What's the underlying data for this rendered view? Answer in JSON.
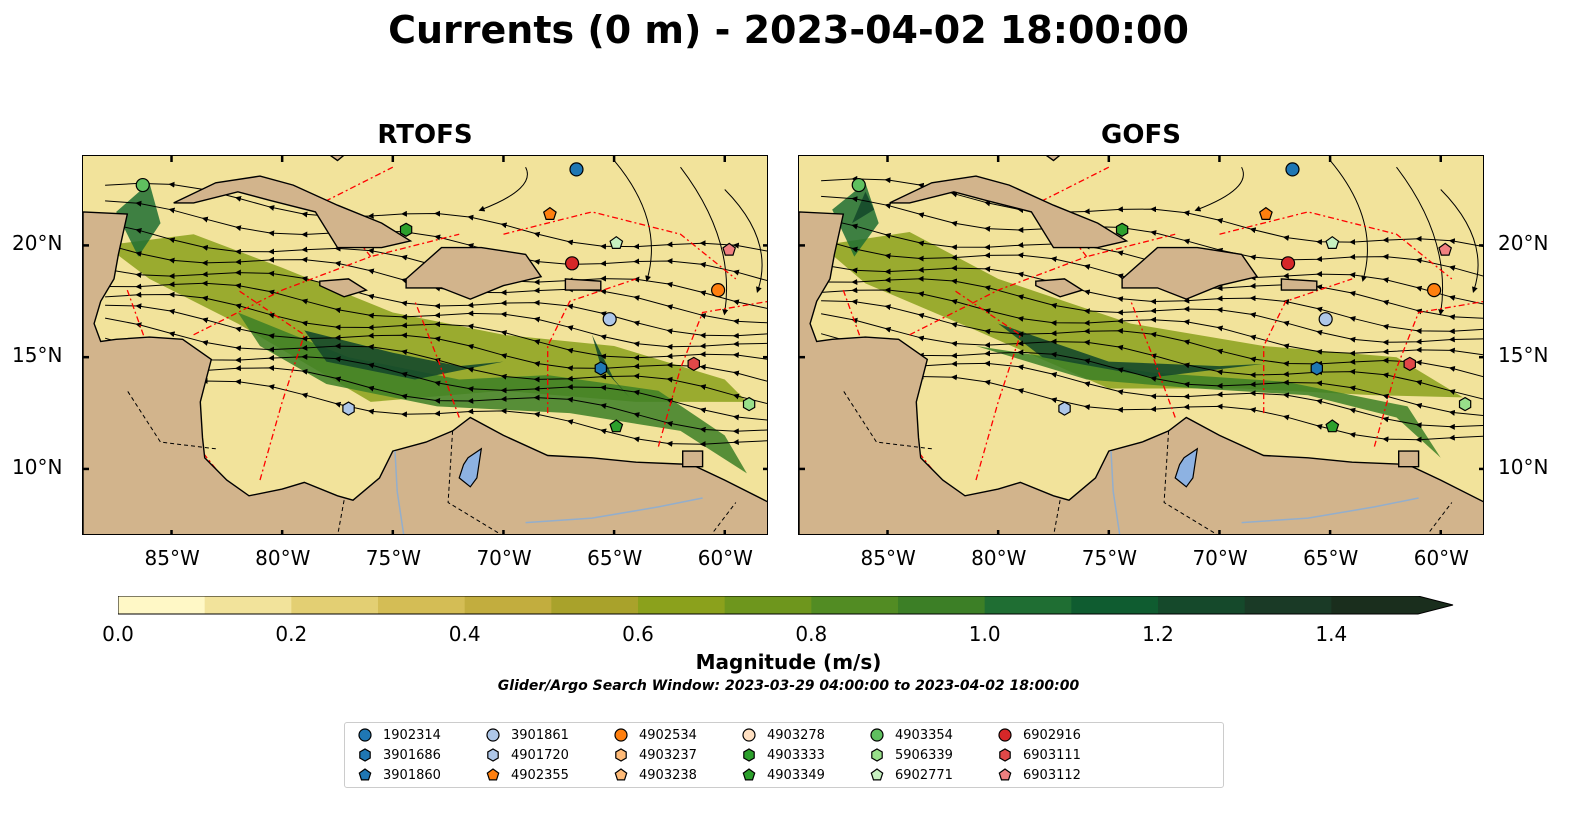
{
  "title": "Currents (0 m) - 2023-04-02 18:00:00",
  "panels": [
    {
      "title": "RTOFS"
    },
    {
      "title": "GOFS"
    }
  ],
  "map_extent": {
    "lon": [
      -89,
      -58
    ],
    "lat": [
      7,
      24
    ]
  },
  "lon_ticks": [
    "85°W",
    "80°W",
    "75°W",
    "70°W",
    "65°W",
    "60°W"
  ],
  "lon_tick_values": [
    -85,
    -80,
    -75,
    -70,
    -65,
    -60
  ],
  "lat_ticks": [
    "20°N",
    "15°N",
    "10°N"
  ],
  "lat_tick_values": [
    20,
    15,
    10
  ],
  "colors": {
    "land": "#d2b48c",
    "lake": "#8db2e2",
    "eez": "#ff0000",
    "coast": "#000000"
  },
  "colorbar": {
    "label": "Magnitude (m/s)",
    "min": 0.0,
    "max": 1.5,
    "step": 0.1,
    "extend": "max",
    "tick_labels": [
      "0.0",
      "0.2",
      "0.4",
      "0.6",
      "0.8",
      "1.0",
      "1.2",
      "1.4"
    ],
    "tick_values": [
      0.0,
      0.2,
      0.4,
      0.6,
      0.8,
      1.0,
      1.2,
      1.4
    ],
    "colors": [
      "#fff8c6",
      "#f2e39b",
      "#e3cf73",
      "#d4bd55",
      "#c2ad3e",
      "#a9a22b",
      "#8ba11c",
      "#6e961d",
      "#528c23",
      "#3c7f26",
      "#1f6e33",
      "#0f5c30",
      "#15492b",
      "#1a3a26",
      "#1a2e1d"
    ]
  },
  "search_window": "Glider/Argo Search Window: 2023-03-29 04:00:00 to 2023-04-02 18:00:00",
  "legend": [
    {
      "id": "1902314",
      "marker": "circle",
      "color": "#1f77b4"
    },
    {
      "id": "3901686",
      "marker": "hexagon",
      "color": "#1f77b4"
    },
    {
      "id": "3901860",
      "marker": "pentagon",
      "color": "#1f77b4"
    },
    {
      "id": "3901861",
      "marker": "circle",
      "color": "#aec7e8"
    },
    {
      "id": "4901720",
      "marker": "hexagon",
      "color": "#aec7e8"
    },
    {
      "id": "4902355",
      "marker": "pentagon",
      "color": "#ff7f0e"
    },
    {
      "id": "4902534",
      "marker": "circle",
      "color": "#ff7f0e"
    },
    {
      "id": "4903237",
      "marker": "hexagon",
      "color": "#ffbb78"
    },
    {
      "id": "4903238",
      "marker": "pentagon",
      "color": "#ffbb78"
    },
    {
      "id": "4903278",
      "marker": "circle",
      "color": "#ffe0c2"
    },
    {
      "id": "4903333",
      "marker": "hexagon",
      "color": "#2ca02c"
    },
    {
      "id": "4903349",
      "marker": "pentagon",
      "color": "#2ca02c"
    },
    {
      "id": "4903354",
      "marker": "circle",
      "color": "#5fbf5f"
    },
    {
      "id": "5906339",
      "marker": "hexagon",
      "color": "#98df8a"
    },
    {
      "id": "6902771",
      "marker": "pentagon",
      "color": "#c7f0c0"
    },
    {
      "id": "6902916",
      "marker": "circle",
      "color": "#d62728"
    },
    {
      "id": "6903111",
      "marker": "hexagon",
      "color": "#e04848"
    },
    {
      "id": "6903112",
      "marker": "pentagon",
      "color": "#f08080"
    }
  ],
  "floats": [
    {
      "id": "1902314",
      "lon": -66.7,
      "lat": 23.4
    },
    {
      "id": "4902355",
      "lon": -67.9,
      "lat": 21.4
    },
    {
      "id": "6902771",
      "lon": -64.9,
      "lat": 20.1
    },
    {
      "id": "6902916",
      "lon": -66.9,
      "lat": 19.2
    },
    {
      "id": "6903112",
      "lon": -59.8,
      "lat": 19.8
    },
    {
      "id": "4902534",
      "lon": -60.3,
      "lat": 18.0
    },
    {
      "id": "3901861",
      "lon": -65.2,
      "lat": 16.7
    },
    {
      "id": "6903111",
      "lon": -61.4,
      "lat": 14.7
    },
    {
      "id": "3901686",
      "lon": -65.6,
      "lat": 14.5
    },
    {
      "id": "5906339",
      "lon": -58.9,
      "lat": 12.9
    },
    {
      "id": "4903349",
      "lon": -64.9,
      "lat": 11.9
    },
    {
      "id": "4901720",
      "lon": -77.0,
      "lat": 12.7
    },
    {
      "id": "4903333",
      "lon": -74.4,
      "lat": 20.7
    },
    {
      "id": "4903354",
      "lon": -86.3,
      "lat": 22.7
    }
  ]
}
